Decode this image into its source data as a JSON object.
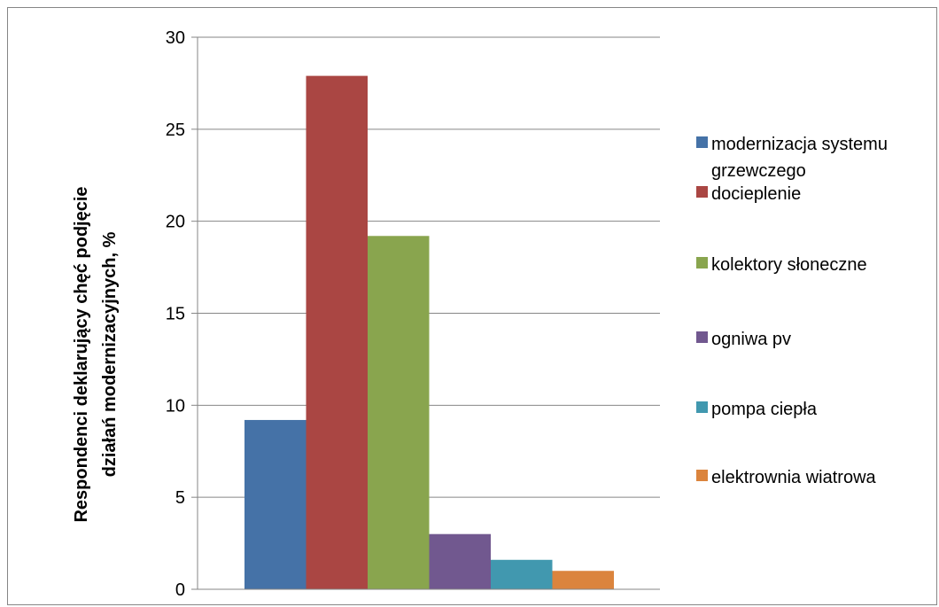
{
  "chart_data": {
    "type": "bar",
    "ylabel_lines": [
      "Respondenci deklarujący chęć podjęcie",
      "działań modernizacyjnych, %"
    ],
    "ylim": [
      0,
      30
    ],
    "y_ticks": [
      0,
      5,
      10,
      15,
      20,
      25,
      30
    ],
    "grid": true,
    "legend_position": "right",
    "series": [
      {
        "name": "modernizacja systemu grzewczego",
        "legend_lines": [
          "modernizacja systemu",
          "grzewczego"
        ],
        "value": 9.2,
        "color": "#4572A7"
      },
      {
        "name": "docieplenie",
        "legend_lines": [
          "docieplenie"
        ],
        "value": 27.9,
        "color": "#AA4643"
      },
      {
        "name": "kolektory słoneczne",
        "legend_lines": [
          "kolektory słoneczne"
        ],
        "value": 19.2,
        "color": "#89A54E"
      },
      {
        "name": "ogniwa pv",
        "legend_lines": [
          "ogniwa pv"
        ],
        "value": 3.0,
        "color": "#71588F"
      },
      {
        "name": "pompa ciepła",
        "legend_lines": [
          "pompa ciepła"
        ],
        "value": 1.6,
        "color": "#4198AF"
      },
      {
        "name": "elektrownia wiatrowa",
        "legend_lines": [
          "elektrownia wiatrowa"
        ],
        "value": 1.0,
        "color": "#DB843D"
      }
    ]
  }
}
